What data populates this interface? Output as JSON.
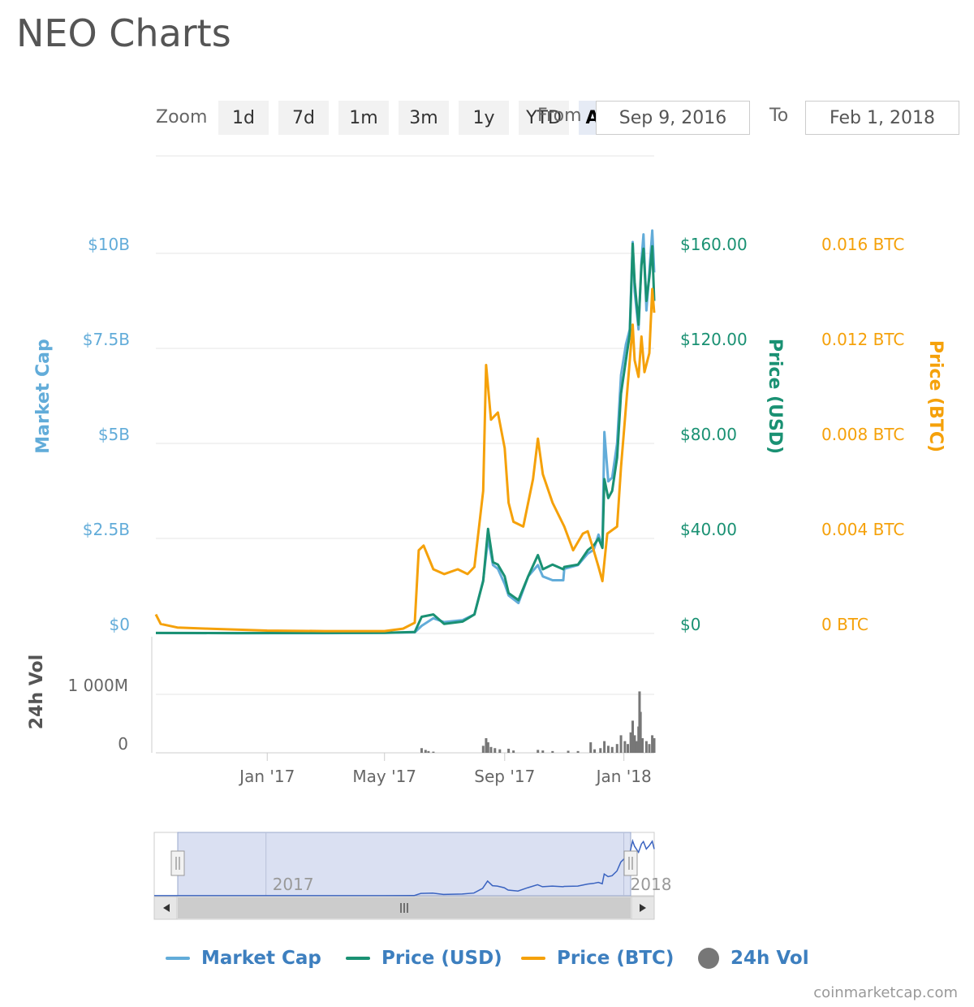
{
  "page": {
    "title": "NEO Charts",
    "credit": "coinmarketcap.com"
  },
  "range_selector": {
    "zoom_label": "Zoom",
    "buttons": [
      {
        "label": "1d",
        "active": false
      },
      {
        "label": "7d",
        "active": false
      },
      {
        "label": "1m",
        "active": false
      },
      {
        "label": "3m",
        "active": false
      },
      {
        "label": "1y",
        "active": false
      },
      {
        "label": "YTD",
        "active": false
      },
      {
        "label": "ALL",
        "active": true
      }
    ],
    "from_label": "From",
    "from_value": "Sep 9, 2016",
    "to_label": "To",
    "to_value": "Feb 1, 2018"
  },
  "colors": {
    "market_cap": "#62acd9",
    "price_usd": "#1a9173",
    "price_btc": "#f5a10a",
    "volume": "#777777",
    "axis_title_vol": "#555555",
    "navigator_fill": "#d3daf0",
    "navigator_line": "#3a63c0"
  },
  "chart_data": {
    "type": "line",
    "x_range": [
      "2016-09-09",
      "2018-02-01"
    ],
    "x_tick_labels": [
      "Jan '17",
      "May '17",
      "Sep '17",
      "Jan '18"
    ],
    "x_ticks": [
      "2017-01-01",
      "2017-05-01",
      "2017-09-01",
      "2018-01-01"
    ],
    "y_axes": [
      {
        "id": "market_cap",
        "title": "Market Cap",
        "position": "left",
        "range": [
          0,
          10000000000
        ],
        "tick_labels": [
          "$0",
          "$2.5B",
          "$5B",
          "$7.5B",
          "$10B"
        ]
      },
      {
        "id": "price_usd",
        "title": "Price (USD)",
        "position": "right",
        "range": [
          0,
          160
        ],
        "tick_labels": [
          "$0",
          "$40.00",
          "$80.00",
          "$120.00",
          "$160.00"
        ]
      },
      {
        "id": "price_btc",
        "title": "Price (BTC)",
        "position": "right",
        "range": [
          0,
          0.016
        ],
        "tick_labels": [
          "0 BTC",
          "0.004 BTC",
          "0.008 BTC",
          "0.012 BTC",
          "0.016 BTC"
        ]
      }
    ],
    "volume_axis": {
      "title": "24h Vol",
      "range": [
        0,
        1000000000
      ],
      "tick_labels": [
        "0",
        "1 000M"
      ]
    },
    "grid": true,
    "legend_position": "bottom",
    "series": [
      {
        "name": "Market Cap",
        "axis": "market_cap",
        "points": [
          [
            "2016-09-09",
            10000000
          ],
          [
            "2016-12-01",
            8000000
          ],
          [
            "2017-03-01",
            9000000
          ],
          [
            "2017-05-01",
            15000000
          ],
          [
            "2017-06-01",
            30000000
          ],
          [
            "2017-06-08",
            200000000
          ],
          [
            "2017-06-20",
            400000000
          ],
          [
            "2017-07-01",
            300000000
          ],
          [
            "2017-07-20",
            350000000
          ],
          [
            "2017-08-01",
            500000000
          ],
          [
            "2017-08-10",
            1400000000
          ],
          [
            "2017-08-15",
            2500000000
          ],
          [
            "2017-08-20",
            1800000000
          ],
          [
            "2017-08-25",
            1700000000
          ],
          [
            "2017-09-01",
            1300000000
          ],
          [
            "2017-09-05",
            1000000000
          ],
          [
            "2017-09-15",
            800000000
          ],
          [
            "2017-09-25",
            1500000000
          ],
          [
            "2017-10-05",
            1800000000
          ],
          [
            "2017-10-10",
            1500000000
          ],
          [
            "2017-10-20",
            1400000000
          ],
          [
            "2017-10-31",
            1400000000
          ],
          [
            "2017-11-01",
            1700000000
          ],
          [
            "2017-11-15",
            1800000000
          ],
          [
            "2017-11-25",
            2100000000
          ],
          [
            "2017-12-01",
            2200000000
          ],
          [
            "2017-12-06",
            2600000000
          ],
          [
            "2017-12-10",
            2300000000
          ],
          [
            "2017-12-12",
            5300000000
          ],
          [
            "2017-12-16",
            4000000000
          ],
          [
            "2017-12-20",
            4100000000
          ],
          [
            "2017-12-25",
            5000000000
          ],
          [
            "2017-12-29",
            6800000000
          ],
          [
            "2018-01-03",
            7600000000
          ],
          [
            "2018-01-07",
            8000000000
          ],
          [
            "2018-01-10",
            10300000000
          ],
          [
            "2018-01-12",
            9000000000
          ],
          [
            "2018-01-16",
            8000000000
          ],
          [
            "2018-01-19",
            9800000000
          ],
          [
            "2018-01-21",
            10500000000
          ],
          [
            "2018-01-24",
            8500000000
          ],
          [
            "2018-01-27",
            9500000000
          ],
          [
            "2018-01-30",
            10600000000
          ],
          [
            "2018-02-01",
            9500000000
          ]
        ]
      },
      {
        "name": "Price (USD)",
        "axis": "price_usd",
        "points": [
          [
            "2016-09-09",
            0.2
          ],
          [
            "2016-12-01",
            0.15
          ],
          [
            "2017-03-01",
            0.2
          ],
          [
            "2017-05-01",
            0.25
          ],
          [
            "2017-06-01",
            0.6
          ],
          [
            "2017-06-08",
            7
          ],
          [
            "2017-06-20",
            8
          ],
          [
            "2017-07-01",
            4
          ],
          [
            "2017-07-20",
            5
          ],
          [
            "2017-08-01",
            8
          ],
          [
            "2017-08-10",
            22
          ],
          [
            "2017-08-15",
            44
          ],
          [
            "2017-08-20",
            30
          ],
          [
            "2017-08-25",
            29
          ],
          [
            "2017-09-01",
            24
          ],
          [
            "2017-09-05",
            17
          ],
          [
            "2017-09-15",
            14
          ],
          [
            "2017-09-25",
            24
          ],
          [
            "2017-10-05",
            33
          ],
          [
            "2017-10-10",
            27
          ],
          [
            "2017-10-20",
            29
          ],
          [
            "2017-10-31",
            27
          ],
          [
            "2017-11-01",
            28
          ],
          [
            "2017-11-15",
            29
          ],
          [
            "2017-11-25",
            35
          ],
          [
            "2017-12-01",
            37
          ],
          [
            "2017-12-06",
            40
          ],
          [
            "2017-12-10",
            36
          ],
          [
            "2017-12-12",
            65
          ],
          [
            "2017-12-16",
            57
          ],
          [
            "2017-12-20",
            60
          ],
          [
            "2017-12-25",
            74
          ],
          [
            "2017-12-29",
            101
          ],
          [
            "2018-01-03",
            115
          ],
          [
            "2018-01-07",
            126
          ],
          [
            "2018-01-10",
            164
          ],
          [
            "2018-01-12",
            148
          ],
          [
            "2018-01-16",
            130
          ],
          [
            "2018-01-19",
            155
          ],
          [
            "2018-01-21",
            162
          ],
          [
            "2018-01-24",
            140
          ],
          [
            "2018-01-27",
            150
          ],
          [
            "2018-01-30",
            163
          ],
          [
            "2018-02-01",
            140
          ]
        ]
      },
      {
        "name": "Price (BTC)",
        "axis": "price_btc",
        "points": [
          [
            "2016-09-09",
            0.0008
          ],
          [
            "2016-09-14",
            0.0004
          ],
          [
            "2016-10-01",
            0.00025
          ],
          [
            "2016-11-01",
            0.0002
          ],
          [
            "2017-01-01",
            0.00012
          ],
          [
            "2017-03-01",
            0.0001
          ],
          [
            "2017-05-01",
            0.0001
          ],
          [
            "2017-05-20",
            0.0002
          ],
          [
            "2017-06-01",
            0.00045
          ],
          [
            "2017-06-05",
            0.0035
          ],
          [
            "2017-06-10",
            0.0037
          ],
          [
            "2017-06-20",
            0.0027
          ],
          [
            "2017-07-01",
            0.0025
          ],
          [
            "2017-07-15",
            0.0027
          ],
          [
            "2017-07-25",
            0.0025
          ],
          [
            "2017-08-01",
            0.0028
          ],
          [
            "2017-08-10",
            0.006
          ],
          [
            "2017-08-13",
            0.0113
          ],
          [
            "2017-08-18",
            0.009
          ],
          [
            "2017-08-25",
            0.0093
          ],
          [
            "2017-09-01",
            0.0078
          ],
          [
            "2017-09-05",
            0.0055
          ],
          [
            "2017-09-10",
            0.0047
          ],
          [
            "2017-09-20",
            0.0045
          ],
          [
            "2017-09-30",
            0.0065
          ],
          [
            "2017-10-05",
            0.0082
          ],
          [
            "2017-10-10",
            0.0067
          ],
          [
            "2017-10-20",
            0.0055
          ],
          [
            "2017-11-01",
            0.0045
          ],
          [
            "2017-11-10",
            0.0035
          ],
          [
            "2017-11-20",
            0.0042
          ],
          [
            "2017-11-25",
            0.0043
          ],
          [
            "2017-12-01",
            0.0035
          ],
          [
            "2017-12-06",
            0.0028
          ],
          [
            "2017-12-10",
            0.0022
          ],
          [
            "2017-12-15",
            0.0042
          ],
          [
            "2017-12-25",
            0.0045
          ],
          [
            "2017-12-29",
            0.007
          ],
          [
            "2018-01-03",
            0.0095
          ],
          [
            "2018-01-07",
            0.0115
          ],
          [
            "2018-01-10",
            0.013
          ],
          [
            "2018-01-12",
            0.0115
          ],
          [
            "2018-01-16",
            0.0108
          ],
          [
            "2018-01-19",
            0.0125
          ],
          [
            "2018-01-22",
            0.011
          ],
          [
            "2018-01-27",
            0.0118
          ],
          [
            "2018-01-30",
            0.0145
          ],
          [
            "2018-02-01",
            0.0135
          ]
        ]
      },
      {
        "name": "24h Vol",
        "type": "column",
        "axis": "volume",
        "points": [
          [
            "2017-06-08",
            80000000
          ],
          [
            "2017-06-12",
            50000000
          ],
          [
            "2017-06-15",
            30000000
          ],
          [
            "2017-06-20",
            20000000
          ],
          [
            "2017-08-10",
            120000000
          ],
          [
            "2017-08-13",
            250000000
          ],
          [
            "2017-08-15",
            180000000
          ],
          [
            "2017-08-18",
            100000000
          ],
          [
            "2017-08-22",
            80000000
          ],
          [
            "2017-08-27",
            60000000
          ],
          [
            "2017-09-05",
            70000000
          ],
          [
            "2017-09-10",
            40000000
          ],
          [
            "2017-10-05",
            50000000
          ],
          [
            "2017-10-10",
            40000000
          ],
          [
            "2017-10-20",
            30000000
          ],
          [
            "2017-11-05",
            35000000
          ],
          [
            "2017-11-15",
            30000000
          ],
          [
            "2017-11-28",
            180000000
          ],
          [
            "2017-12-02",
            60000000
          ],
          [
            "2017-12-08",
            80000000
          ],
          [
            "2017-12-12",
            200000000
          ],
          [
            "2017-12-16",
            120000000
          ],
          [
            "2017-12-20",
            100000000
          ],
          [
            "2017-12-25",
            150000000
          ],
          [
            "2017-12-29",
            300000000
          ],
          [
            "2018-01-02",
            200000000
          ],
          [
            "2018-01-05",
            150000000
          ],
          [
            "2018-01-08",
            350000000
          ],
          [
            "2018-01-10",
            550000000
          ],
          [
            "2018-01-12",
            300000000
          ],
          [
            "2018-01-14",
            200000000
          ],
          [
            "2018-01-16",
            450000000
          ],
          [
            "2018-01-17",
            1050000000
          ],
          [
            "2018-01-18",
            700000000
          ],
          [
            "2018-01-20",
            250000000
          ],
          [
            "2018-01-24",
            200000000
          ],
          [
            "2018-01-27",
            150000000
          ],
          [
            "2018-01-30",
            300000000
          ],
          [
            "2018-02-01",
            250000000
          ]
        ]
      }
    ],
    "navigator": {
      "tick_labels": [
        "2017",
        "2018"
      ],
      "ticks": [
        "2017-01-01",
        "2018-01-01"
      ]
    }
  },
  "legend": [
    {
      "label": "Market Cap",
      "symbol": "line",
      "color": "#62acd9"
    },
    {
      "label": "Price (USD)",
      "symbol": "line",
      "color": "#1a9173"
    },
    {
      "label": "Price (BTC)",
      "symbol": "line",
      "color": "#f5a10a"
    },
    {
      "label": "24h Vol",
      "symbol": "dot",
      "color": "#777777"
    }
  ]
}
